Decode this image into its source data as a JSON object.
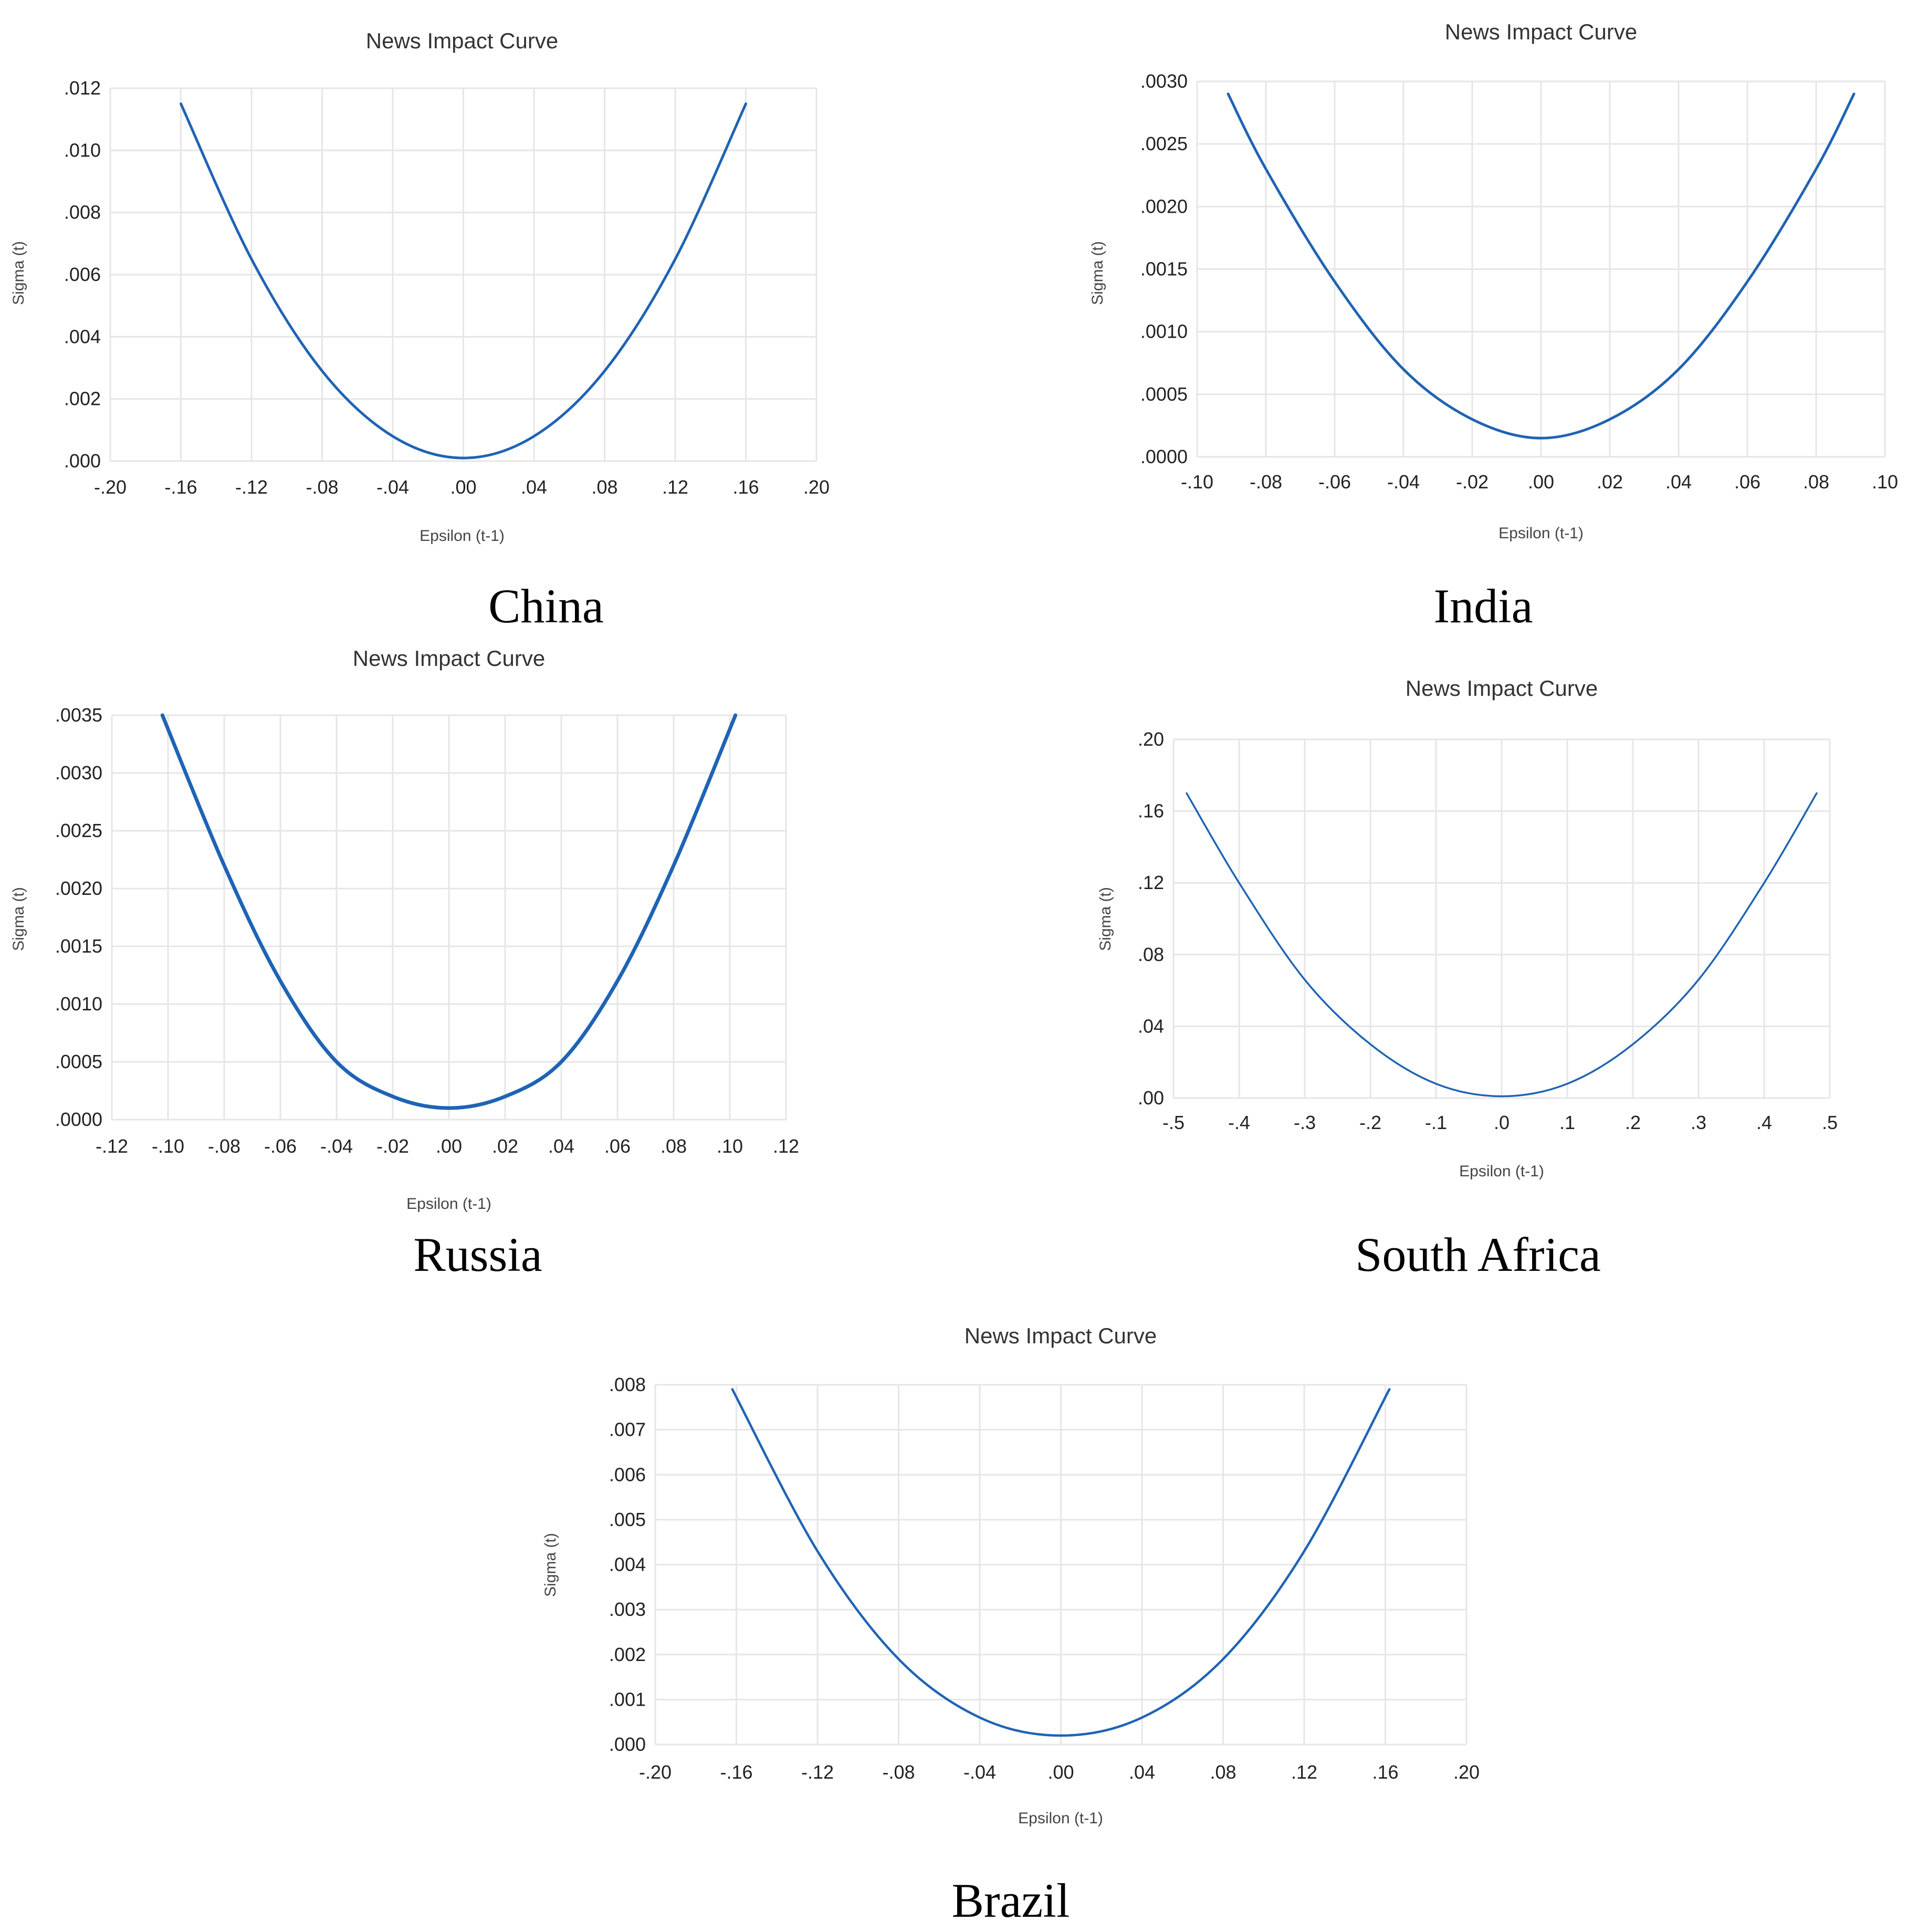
{
  "chart_data": [
    {
      "type": "line",
      "title": "News Impact Curve",
      "xlabel": "Epsilon (t-1)",
      "ylabel": "Sigma (t)",
      "country": "China",
      "xlim": [
        -0.2,
        0.2
      ],
      "ylim": [
        0,
        0.012
      ],
      "x_ticks": [
        "-.20",
        "-.16",
        "-.12",
        "-.08",
        "-.04",
        ".00",
        ".04",
        ".08",
        ".12",
        ".16",
        ".20"
      ],
      "y_ticks": [
        ".000",
        ".002",
        ".004",
        ".006",
        ".008",
        ".010",
        ".012"
      ],
      "grid": true,
      "line_color": "#1f63b4",
      "series": [
        {
          "x": [
            -0.16,
            -0.12,
            -0.08,
            -0.04,
            0.0,
            0.04,
            0.08,
            0.12,
            0.16
          ],
          "y": [
            0.0115,
            0.0065,
            0.0029,
            0.0008,
            0.0001,
            0.0008,
            0.0029,
            0.0065,
            0.0115
          ]
        }
      ]
    },
    {
      "type": "line",
      "title": "News Impact Curve",
      "xlabel": "Epsilon (t-1)",
      "ylabel": "Sigma (t)",
      "country": "India",
      "xlim": [
        -0.1,
        0.1
      ],
      "ylim": [
        0,
        0.003
      ],
      "x_ticks": [
        "-.10",
        "-.08",
        "-.06",
        "-.04",
        "-.02",
        ".00",
        ".02",
        ".04",
        ".06",
        ".08",
        ".10"
      ],
      "y_ticks": [
        ".0000",
        ".0005",
        ".0010",
        ".0015",
        ".0020",
        ".0025",
        ".0030"
      ],
      "grid": true,
      "line_color": "#1f63b4",
      "series": [
        {
          "x": [
            -0.091,
            -0.08,
            -0.06,
            -0.04,
            -0.02,
            0.0,
            0.02,
            0.04,
            0.06,
            0.08,
            0.091
          ],
          "y": [
            0.0029,
            0.0023,
            0.0014,
            0.0007,
            0.0003,
            0.00015,
            0.0003,
            0.0007,
            0.0014,
            0.0023,
            0.0029
          ]
        }
      ]
    },
    {
      "type": "line",
      "title": "News Impact Curve",
      "xlabel": "Epsilon (t-1)",
      "ylabel": "Sigma (t)",
      "country": "Russia",
      "xlim": [
        -0.12,
        0.12
      ],
      "ylim": [
        0,
        0.0035
      ],
      "x_ticks": [
        "-.12",
        "-.10",
        "-.08",
        "-.06",
        "-.04",
        "-.02",
        ".00",
        ".02",
        ".04",
        ".06",
        ".08",
        ".10",
        ".12"
      ],
      "y_ticks": [
        ".0000",
        ".0005",
        ".0010",
        ".0015",
        ".0020",
        ".0025",
        ".0030",
        ".0035"
      ],
      "grid": true,
      "line_color": "#1f63b4",
      "series": [
        {
          "x": [
            -0.102,
            -0.08,
            -0.06,
            -0.04,
            -0.02,
            0.0,
            0.02,
            0.04,
            0.06,
            0.08,
            0.102
          ],
          "y": [
            0.0035,
            0.0022,
            0.0012,
            0.0005,
            0.0002,
            0.0001,
            0.0002,
            0.0005,
            0.0012,
            0.0022,
            0.0035
          ]
        }
      ]
    },
    {
      "type": "line",
      "title": "News Impact Curve",
      "xlabel": "Epsilon (t-1)",
      "ylabel": "Sigma (t)",
      "country": "South Africa",
      "xlim": [
        -0.5,
        0.5
      ],
      "ylim": [
        0,
        0.2
      ],
      "x_ticks": [
        "-.5",
        "-.4",
        "-.3",
        "-.2",
        "-.1",
        ".0",
        ".1",
        ".2",
        ".3",
        ".4",
        ".5"
      ],
      "y_ticks": [
        ".00",
        ".04",
        ".08",
        ".12",
        ".16",
        ".20"
      ],
      "grid": true,
      "line_color": "#1f63b4",
      "series": [
        {
          "x": [
            -0.48,
            -0.4,
            -0.3,
            -0.2,
            -0.1,
            0.0,
            0.1,
            0.2,
            0.3,
            0.4,
            0.48
          ],
          "y": [
            0.17,
            0.12,
            0.066,
            0.03,
            0.008,
            0.001,
            0.008,
            0.03,
            0.066,
            0.12,
            0.17
          ]
        }
      ]
    },
    {
      "type": "line",
      "title": "News Impact Curve",
      "xlabel": "Epsilon (t-1)",
      "ylabel": "Sigma (t)",
      "country": "Brazil",
      "xlim": [
        -0.2,
        0.2
      ],
      "ylim": [
        0,
        0.008
      ],
      "x_ticks": [
        "-.20",
        "-.16",
        "-.12",
        "-.08",
        "-.04",
        ".00",
        ".04",
        ".08",
        ".12",
        ".16",
        ".20"
      ],
      "y_ticks": [
        ".000",
        ".001",
        ".002",
        ".003",
        ".004",
        ".005",
        ".006",
        ".007",
        ".008"
      ],
      "grid": true,
      "line_color": "#1f63b4",
      "series": [
        {
          "x": [
            -0.162,
            -0.12,
            -0.08,
            -0.04,
            0.0,
            0.04,
            0.08,
            0.12,
            0.162
          ],
          "y": [
            0.0079,
            0.0043,
            0.0019,
            0.0006,
            0.0002,
            0.0006,
            0.0019,
            0.0043,
            0.0079
          ]
        }
      ]
    }
  ]
}
